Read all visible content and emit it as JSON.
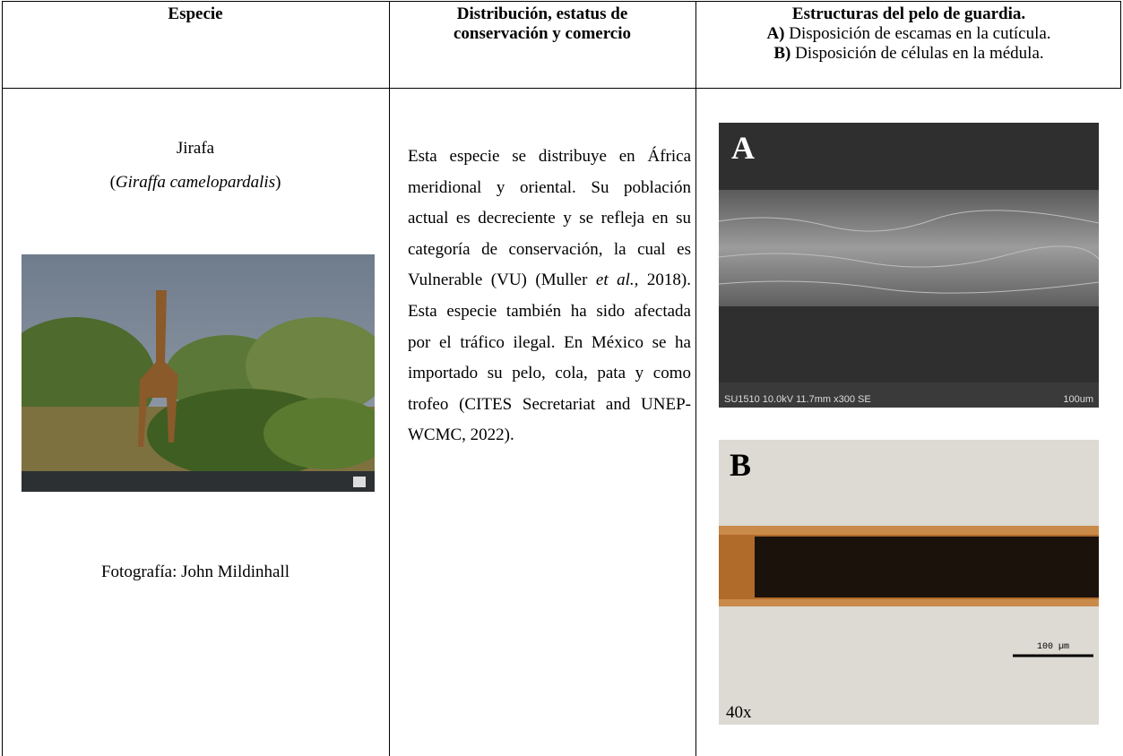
{
  "header": {
    "col1": "Especie",
    "col2": "Distribución, estatus de conservación y comercio",
    "col3_title": "Estructuras del pelo de guardia.",
    "col3_a_label": "A)",
    "col3_a_text": " Disposición de escamas en la cutícula.",
    "col3_b_label": "B)",
    "col3_b_text": " Disposición de células en la médula."
  },
  "species": {
    "common_name": "Jirafa",
    "scientific_open": "(",
    "scientific_name": "Giraffa camelopardalis",
    "scientific_close": ")",
    "photo_credit": "Fotografía: John Mildinhall"
  },
  "distribution": {
    "before": "Esta especie se distribuye en África meridional y oriental. Su población actual es decreciente y se refleja en su categoría de conservación, la cual es Vulnerable (VU) (Muller ",
    "italic": "et al.",
    "after": ", 2018). Esta especie también ha sido afectada por el tráfico ilegal. En México se ha importado su pelo, cola, pata y como trofeo (CITES Secretariat and UNEP-WCMC, 2022)."
  },
  "images": {
    "a_letter": "A",
    "a_caption": "SU1510 10.0kV 11.7mm x300 SE",
    "a_scale": "100um",
    "b_letter": "B",
    "b_scale": "100 µm",
    "b_magnification": "40x"
  }
}
